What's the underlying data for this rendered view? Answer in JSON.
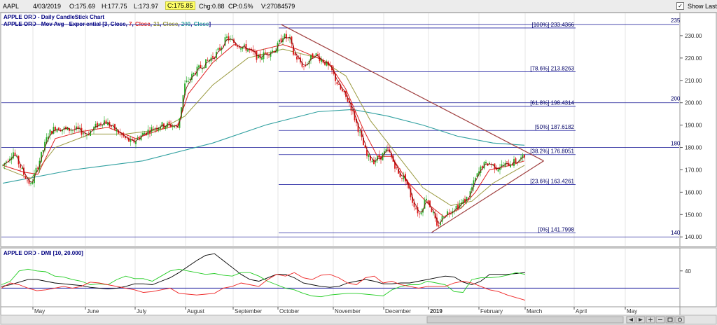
{
  "toolbar": {
    "symbol": "AAPL",
    "date": "4/03/2019",
    "open": "O:175.69",
    "high": "H:177.75",
    "low": "L:173.97",
    "close": "C:175.85",
    "chg": "Chg:0.88",
    "cp": "CP:0.5%",
    "volume": "V:27084579",
    "show_last": "Show Last"
  },
  "colors": {
    "up_candle": "#22aa22",
    "down_candle": "#dd1111",
    "ema3": "#7a0000",
    "ema7": "#e02020",
    "ema21": "#9a9a40",
    "ema200": "#30a0a0",
    "fib": "#2020a0",
    "trend": "#a04040",
    "dmi_adx": "#000000",
    "dmi_plus": "#22cc22",
    "dmi_minus": "#ee2222"
  },
  "chart_data": [
    {
      "type": "candlestick",
      "title": "APPLE ORD - Daily CandleStick Chart",
      "indicator_title": "APPLE ORD - Mov Avg - Exponential",
      "indicator_params": [
        {
          "text": " [3, ",
          "color": "#000080"
        },
        {
          "text": "Close",
          "color": "#000080"
        },
        {
          "text": ", ",
          "color": "#000080"
        },
        {
          "text": "7",
          "color": "#e02020"
        },
        {
          "text": ", ",
          "color": "#000080"
        },
        {
          "text": "Close",
          "color": "#e02020"
        },
        {
          "text": ", ",
          "color": "#000080"
        },
        {
          "text": "21",
          "color": "#9a9a40"
        },
        {
          "text": ", ",
          "color": "#000080"
        },
        {
          "text": "Close",
          "color": "#9a9a40"
        },
        {
          "text": ", ",
          "color": "#000080"
        },
        {
          "text": "200",
          "color": "#30a0a0"
        },
        {
          "text": ", ",
          "color": "#000080"
        },
        {
          "text": "Close",
          "color": "#30a0a0"
        },
        {
          "text": "]",
          "color": "#000080"
        }
      ],
      "ylim": [
        136,
        240
      ],
      "y_ticks": [
        140,
        150,
        160,
        170,
        180,
        190,
        200,
        210,
        220,
        230
      ],
      "y_tick_labels": [
        "140.00",
        "150.00",
        "160.00",
        "170.00",
        "180.00",
        "190.00",
        "200.00",
        "210.00",
        "220.00",
        "230.00"
      ],
      "horizontal_levels": [
        {
          "value": 235,
          "label": "235"
        },
        {
          "value": 200,
          "label": "200"
        },
        {
          "value": 180,
          "label": "180"
        },
        {
          "value": 140,
          "label": "140"
        }
      ],
      "fib_levels": [
        {
          "value": 233.4366,
          "label": "[100%] 233.4366"
        },
        {
          "value": 213.8263,
          "label": "[78.6%] 213.8263"
        },
        {
          "value": 198.4314,
          "label": "[61.8%] 198.4314"
        },
        {
          "value": 187.6182,
          "label": "[50%] 187.6182"
        },
        {
          "value": 176.8051,
          "label": "[38.2%] 176.8051"
        },
        {
          "value": 163.4261,
          "label": "[23.6%] 163.4261"
        },
        {
          "value": 141.7998,
          "label": "[0%] 141.7998"
        }
      ],
      "x_labels": [
        "May",
        "June",
        "July",
        "August",
        "September",
        "October",
        "November",
        "December",
        "2019",
        "February",
        "March",
        "April",
        "May"
      ],
      "price_path": [
        [
          0,
          172
        ],
        [
          6,
          178
        ],
        [
          12,
          168
        ],
        [
          16,
          163
        ],
        [
          20,
          172
        ],
        [
          26,
          186
        ],
        [
          30,
          189
        ],
        [
          36,
          188
        ],
        [
          42,
          188
        ],
        [
          48,
          186
        ],
        [
          54,
          190
        ],
        [
          58,
          192
        ],
        [
          64,
          188
        ],
        [
          70,
          184
        ],
        [
          74,
          182
        ],
        [
          80,
          186
        ],
        [
          84,
          188
        ],
        [
          90,
          190
        ],
        [
          96,
          190
        ],
        [
          100,
          189
        ],
        [
          104,
          208
        ],
        [
          110,
          214
        ],
        [
          116,
          218
        ],
        [
          122,
          222
        ],
        [
          128,
          229
        ],
        [
          134,
          226
        ],
        [
          140,
          224
        ],
        [
          146,
          220
        ],
        [
          150,
          222
        ],
        [
          156,
          224
        ],
        [
          160,
          230
        ],
        [
          164,
          228
        ],
        [
          166,
          222
        ],
        [
          172,
          216
        ],
        [
          178,
          222
        ],
        [
          184,
          218
        ],
        [
          188,
          214
        ],
        [
          192,
          207
        ],
        [
          198,
          200
        ],
        [
          204,
          186
        ],
        [
          208,
          176
        ],
        [
          212,
          174
        ],
        [
          216,
          176
        ],
        [
          220,
          179
        ],
        [
          224,
          172
        ],
        [
          226,
          168
        ],
        [
          230,
          166
        ],
        [
          234,
          156
        ],
        [
          238,
          150
        ],
        [
          242,
          158
        ],
        [
          246,
          150
        ],
        [
          248,
          144
        ],
        [
          252,
          150
        ],
        [
          256,
          152
        ],
        [
          262,
          155
        ],
        [
          266,
          158
        ],
        [
          270,
          166
        ],
        [
          274,
          172
        ],
        [
          278,
          173
        ],
        [
          282,
          171
        ],
        [
          286,
          172
        ],
        [
          290,
          173
        ],
        [
          294,
          174
        ],
        [
          298,
          176
        ]
      ],
      "ema_paths": {
        "ema7": [
          [
            0,
            172
          ],
          [
            12,
            169
          ],
          [
            20,
            168
          ],
          [
            30,
            184
          ],
          [
            44,
            187
          ],
          [
            60,
            189
          ],
          [
            76,
            184
          ],
          [
            90,
            188
          ],
          [
            100,
            190
          ],
          [
            106,
            204
          ],
          [
            120,
            218
          ],
          [
            132,
            226
          ],
          [
            144,
            223
          ],
          [
            160,
            226
          ],
          [
            168,
            224
          ],
          [
            186,
            218
          ],
          [
            196,
            206
          ],
          [
            206,
            188
          ],
          [
            214,
            176
          ],
          [
            222,
            176
          ],
          [
            232,
            164
          ],
          [
            244,
            154
          ],
          [
            252,
            149
          ],
          [
            262,
            153
          ],
          [
            270,
            160
          ],
          [
            278,
            170
          ],
          [
            290,
            172
          ],
          [
            298,
            174
          ]
        ],
        "ema21": [
          [
            0,
            171
          ],
          [
            16,
            166
          ],
          [
            30,
            180
          ],
          [
            50,
            186
          ],
          [
            70,
            186
          ],
          [
            90,
            188
          ],
          [
            104,
            194
          ],
          [
            120,
            208
          ],
          [
            140,
            220
          ],
          [
            160,
            224
          ],
          [
            180,
            220
          ],
          [
            196,
            212
          ],
          [
            210,
            192
          ],
          [
            224,
            178
          ],
          [
            240,
            162
          ],
          [
            256,
            154
          ],
          [
            268,
            156
          ],
          [
            280,
            164
          ],
          [
            298,
            172
          ]
        ],
        "ema200": [
          [
            0,
            164
          ],
          [
            40,
            170
          ],
          [
            80,
            174
          ],
          [
            120,
            182
          ],
          [
            150,
            190
          ],
          [
            180,
            196
          ],
          [
            200,
            197
          ],
          [
            220,
            194
          ],
          [
            240,
            190
          ],
          [
            260,
            185
          ],
          [
            280,
            182
          ],
          [
            298,
            181
          ]
        ]
      },
      "trendlines": [
        {
          "from": [
            159,
            235
          ],
          "to": [
            305,
            174
          ]
        },
        {
          "from": [
            245,
            142
          ],
          "to": [
            305,
            174
          ]
        }
      ]
    },
    {
      "type": "line",
      "title": "APPLE ORD - DMI [10, 20.000]",
      "ylim": [
        0,
        65
      ],
      "y_ticks": [
        40
      ],
      "reference_level": 20,
      "series": [
        {
          "values": [
            22,
            24,
            27,
            30,
            30,
            28,
            26,
            25,
            24,
            23,
            21,
            20,
            19,
            20,
            22,
            25,
            25,
            24,
            28,
            32,
            38,
            45,
            52,
            58,
            60,
            52,
            44,
            36,
            30,
            28,
            32,
            36,
            36,
            32,
            26,
            24,
            22,
            21,
            22,
            26,
            28,
            30,
            28,
            25,
            25,
            26,
            26,
            28,
            30,
            32,
            34,
            33,
            27,
            24,
            28,
            36,
            36,
            36,
            37,
            38
          ]
        },
        {
          "values": [
            24,
            28,
            40,
            42,
            40,
            39,
            34,
            33,
            30,
            28,
            24,
            25,
            24,
            30,
            34,
            31,
            31,
            28,
            34,
            40,
            42,
            40,
            38,
            36,
            37,
            35,
            34,
            38,
            38,
            34,
            28,
            24,
            20,
            18,
            14,
            11,
            10,
            12,
            13,
            14,
            14,
            13,
            12,
            11,
            18,
            22,
            24,
            24,
            28,
            26,
            24,
            16,
            15,
            30,
            32,
            32,
            33,
            35,
            38,
            36
          ]
        },
        {
          "values": [
            20,
            26,
            24,
            20,
            17,
            18,
            20,
            22,
            20,
            22,
            27,
            26,
            24,
            22,
            20,
            18,
            15,
            16,
            18,
            20,
            14,
            13,
            12,
            13,
            14,
            20,
            22,
            26,
            24,
            22,
            30,
            36,
            34,
            38,
            32,
            30,
            35,
            36,
            32,
            26,
            24,
            32,
            34,
            26,
            28,
            24,
            22,
            20,
            22,
            22,
            22,
            26,
            28,
            26,
            22,
            18,
            16,
            12,
            9,
            6
          ]
        }
      ]
    }
  ]
}
